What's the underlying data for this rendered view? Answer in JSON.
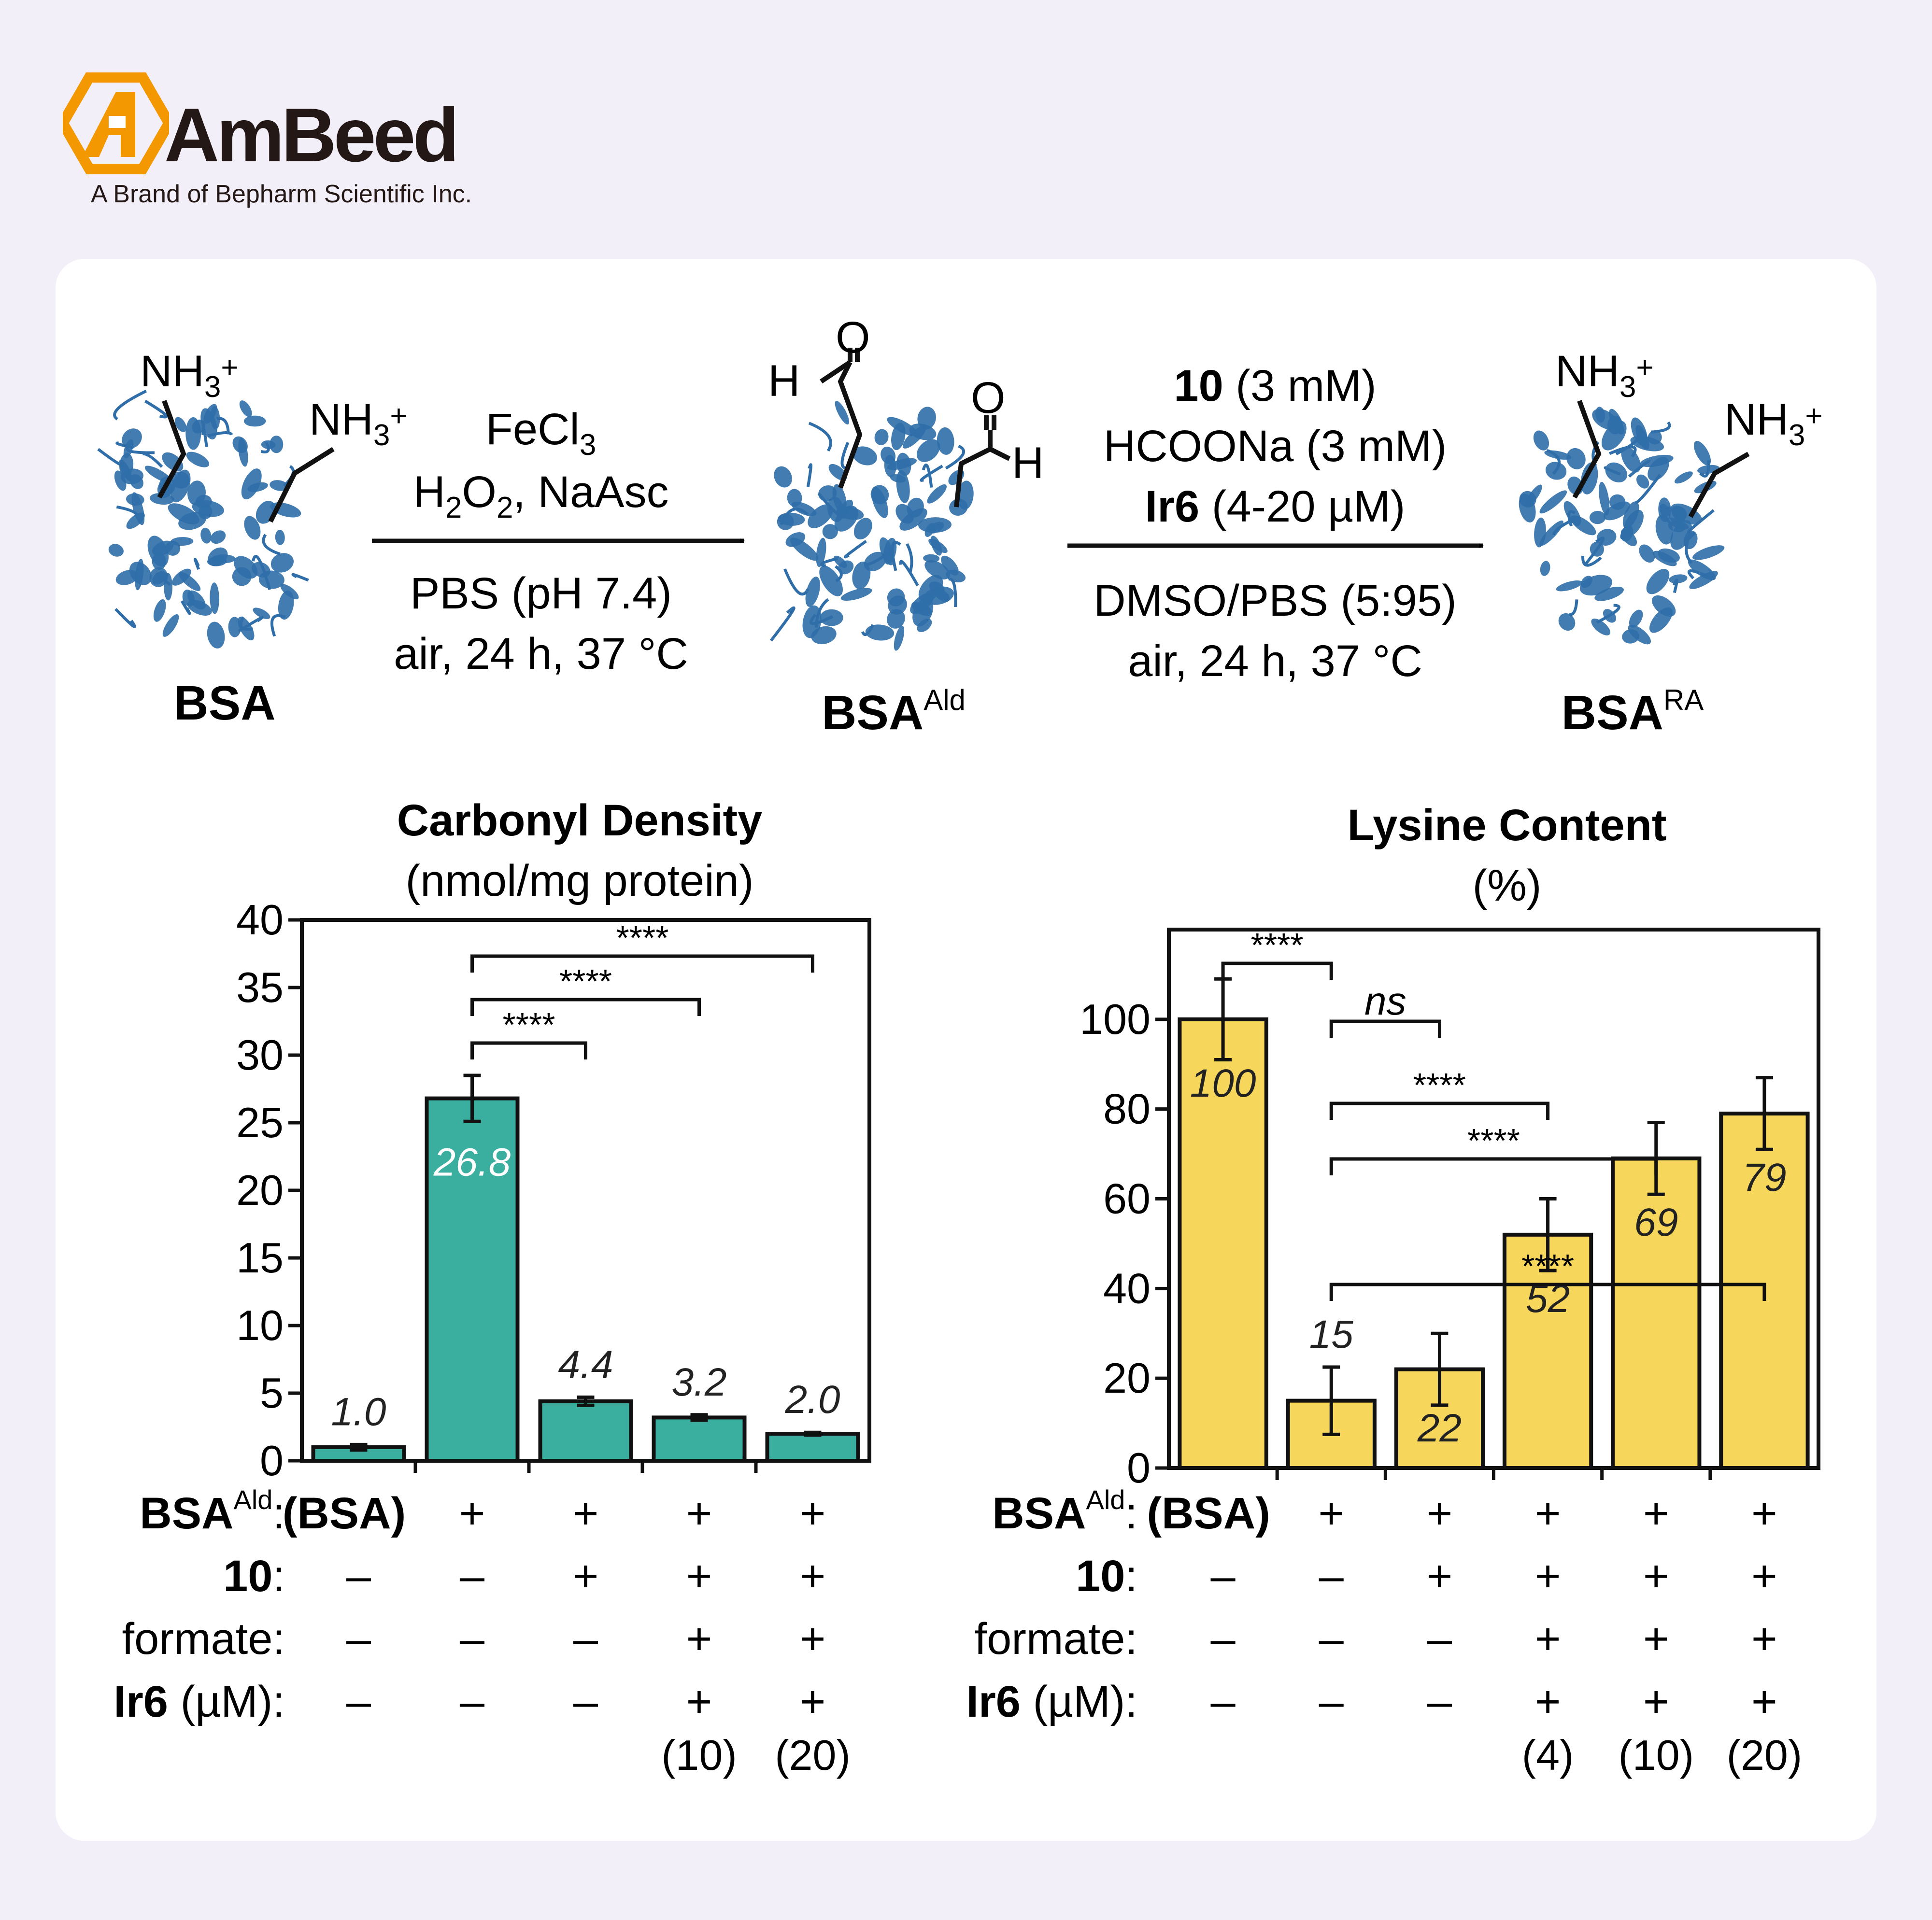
{
  "brand": {
    "name": "AmBeed",
    "tagline": "A Brand of Bepharm Scientific Inc.",
    "logo_color": "#f39800"
  },
  "scheme": {
    "amine_label": "NH3+",
    "aldehyde_h": "H",
    "aldehyde_o": "O",
    "start_label": "BSA",
    "intermediate_label": "BSA",
    "intermediate_sup": "Ald",
    "product_label": "BSA",
    "product_sup": "RA",
    "step1_line1": "FeCl3",
    "step1_line2": "H2O2, NaAsc",
    "step1_line3": "PBS (pH 7.4)",
    "step1_line4": "air, 24 h, 37 °C",
    "step2_line1_bold": "10",
    "step2_line1_rest": " (3 mM)",
    "step2_line2": "HCOONa (3 mM)",
    "step2_line3_bold": "Ir6",
    "step2_line3_rest": " (4-20 µM)",
    "step2_line4": "DMSO/PBS (5:95)",
    "step2_line5": "air, 24 h, 37 °C",
    "protein_color": "#2f6ea8"
  },
  "chart_data": [
    {
      "type": "bar",
      "title": "Carbonyl Density",
      "subtitle": "(nmol/mg protein)",
      "categories": [
        "1",
        "2",
        "3",
        "4",
        "5"
      ],
      "values": [
        1.0,
        26.8,
        4.4,
        3.2,
        2.0
      ],
      "errors": [
        0.2,
        1.7,
        0.3,
        0.2,
        0.1
      ],
      "value_labels": [
        "1.0",
        "26.8",
        "4.4",
        "3.2",
        "2.0"
      ],
      "ylim": [
        0,
        40
      ],
      "yticks": [
        "0",
        "5",
        "10",
        "15",
        "20",
        "25",
        "30",
        "35",
        "40"
      ],
      "color": "#3aafa0",
      "significance": [
        {
          "from": 2,
          "to": 3,
          "label": "****"
        },
        {
          "from": 2,
          "to": 4,
          "label": "****"
        },
        {
          "from": 2,
          "to": 5,
          "label": "****"
        }
      ],
      "conditions": [
        {
          "label_bold": "BSA",
          "label_sup": "Ald",
          "label_rest": ":",
          "values": [
            "(BSA)",
            "+",
            "+",
            "+",
            "+"
          ]
        },
        {
          "label_bold": "10",
          "label_sup": "",
          "label_rest": ":",
          "values": [
            "–",
            "–",
            "+",
            "+",
            "+"
          ]
        },
        {
          "label_bold": "",
          "label_sup": "",
          "label_rest": "formate:",
          "values": [
            "–",
            "–",
            "–",
            "+",
            "+"
          ]
        },
        {
          "label_bold": "Ir6",
          "label_sup": "",
          "label_rest": " (µM):",
          "values": [
            "–",
            "–",
            "–",
            "+",
            "+"
          ]
        }
      ],
      "concentrations": [
        "",
        "",
        "",
        "(10)",
        "(20)"
      ]
    },
    {
      "type": "bar",
      "title": "Lysine Content",
      "subtitle": "(%)",
      "categories": [
        "1",
        "2",
        "3",
        "4",
        "5",
        "6"
      ],
      "values": [
        100,
        15,
        22,
        52,
        69,
        79
      ],
      "errors": [
        9,
        7.5,
        8,
        8,
        8,
        8
      ],
      "value_labels": [
        "100",
        "15",
        "22",
        "52",
        "69",
        "79"
      ],
      "ylim": [
        0,
        120
      ],
      "yticks": [
        "0",
        "20",
        "40",
        "60",
        "80",
        "100"
      ],
      "color": "#f6d65b",
      "significance": [
        {
          "from": 1,
          "to": 2,
          "label": "****"
        },
        {
          "from": 2,
          "to": 3,
          "label": "ns"
        },
        {
          "from": 2,
          "to": 4,
          "label": "****"
        },
        {
          "from": 2,
          "to": 5,
          "label": "****"
        },
        {
          "from": 2,
          "to": 6,
          "label": "****"
        }
      ],
      "conditions": [
        {
          "label_bold": "BSA",
          "label_sup": "Ald",
          "label_rest": ":",
          "values": [
            "(BSA)",
            "+",
            "+",
            "+",
            "+",
            "+"
          ]
        },
        {
          "label_bold": "10",
          "label_sup": "",
          "label_rest": ":",
          "values": [
            "–",
            "–",
            "+",
            "+",
            "+",
            "+"
          ]
        },
        {
          "label_bold": "",
          "label_sup": "",
          "label_rest": "formate:",
          "values": [
            "–",
            "–",
            "–",
            "+",
            "+",
            "+"
          ]
        },
        {
          "label_bold": "Ir6",
          "label_sup": "",
          "label_rest": " (µM):",
          "values": [
            "–",
            "–",
            "–",
            "+",
            "+",
            "+"
          ]
        }
      ],
      "concentrations": [
        "",
        "",
        "",
        "(4)",
        "(10)",
        "(20)"
      ]
    }
  ]
}
